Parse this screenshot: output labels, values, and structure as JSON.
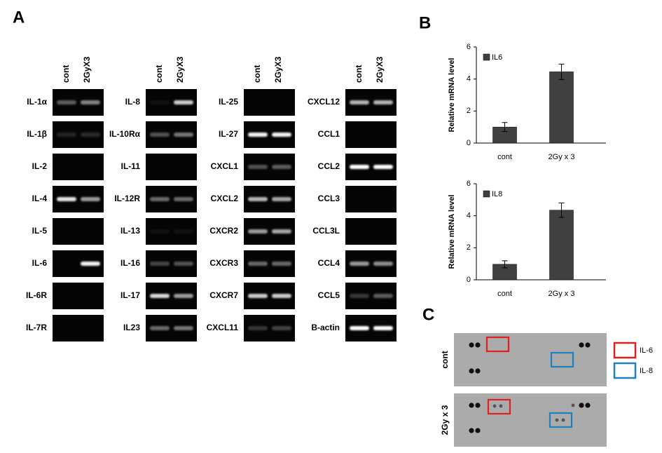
{
  "panel_a": {
    "label": "A",
    "groups": [
      {
        "headers": [
          "cont",
          "2GyX3"
        ],
        "genes": [
          "IL-1α",
          "IL-1β",
          "IL-2",
          "IL-4",
          "IL-5",
          "IL-6",
          "IL-6R",
          "IL-7R"
        ]
      },
      {
        "headers": [
          "cont",
          "2GyX3"
        ],
        "genes": [
          "IL-8",
          "IL-10Rα",
          "IL-11",
          "IL-12R",
          "IL-13",
          "IL-16",
          "IL-17",
          "IL23"
        ]
      },
      {
        "headers": [
          "cont",
          "2GyX3"
        ],
        "genes": [
          "IL-25",
          "IL-27",
          "CXCL1",
          "CXCL2",
          "CXCR2",
          "CXCR3",
          "CXCR7",
          "CXCL11"
        ]
      },
      {
        "headers": [
          "cont",
          "2GyX3"
        ],
        "genes": [
          "CXCL12",
          "CCL1",
          "CCL2",
          "CCL3",
          "CCL3L",
          "CCL4",
          "CCL5",
          "B-actin"
        ]
      }
    ]
  },
  "panel_b": {
    "label": "B"
  },
  "chart_data": [
    {
      "type": "bar",
      "ylabel": "Relative mRNA level",
      "categories": [
        "cont",
        "2Gy x 3"
      ],
      "series": [
        {
          "name": "IL6",
          "color": "#404040",
          "values": [
            1.0,
            4.45
          ],
          "errors": [
            0.28,
            0.48
          ]
        }
      ],
      "ylim": [
        0,
        6
      ],
      "yticks": [
        0,
        2,
        4,
        6
      ]
    },
    {
      "type": "bar",
      "ylabel": "Relative mRNA level",
      "categories": [
        "cont",
        "2Gy x 3"
      ],
      "series": [
        {
          "name": "IL8",
          "color": "#404040",
          "values": [
            0.97,
            4.35
          ],
          "errors": [
            0.22,
            0.45
          ]
        }
      ],
      "ylim": [
        0,
        6
      ],
      "yticks": [
        0,
        2,
        4,
        6
      ]
    }
  ],
  "panel_c": {
    "label": "C",
    "rows": [
      "cont",
      "2Gy x 3"
    ],
    "legend": [
      {
        "label": "IL-6",
        "color": "#e02020"
      },
      {
        "label": "IL-8",
        "color": "#2080c0"
      }
    ]
  }
}
